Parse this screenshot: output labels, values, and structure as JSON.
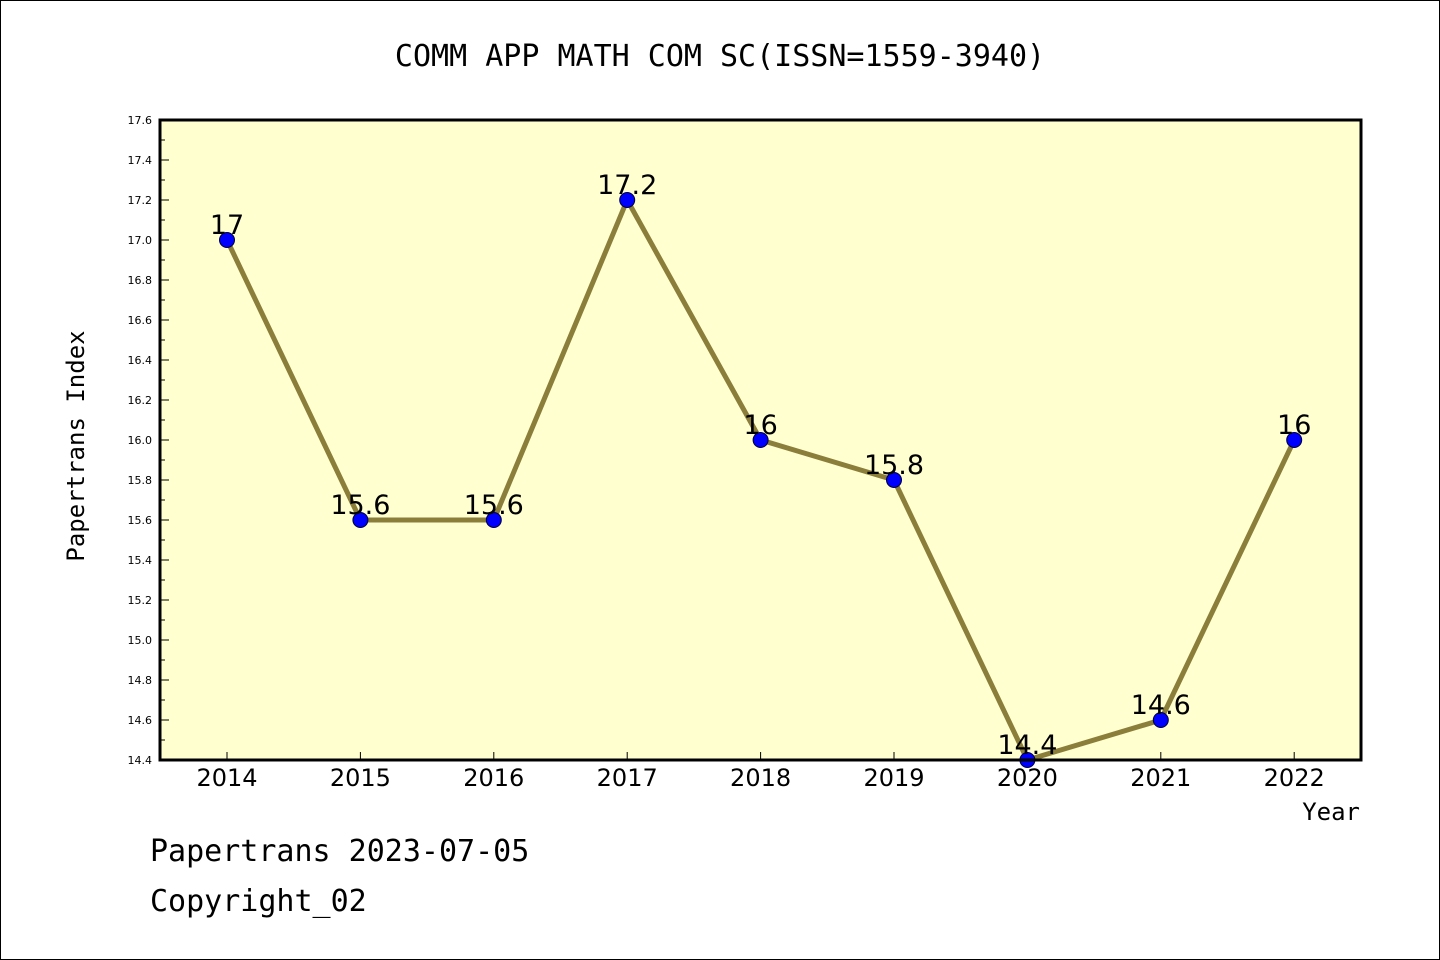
{
  "chart_data": {
    "type": "line",
    "title": "COMM APP MATH COM SC(ISSN=1559-3940)",
    "xlabel": "Year",
    "ylabel": "Papertrans Index",
    "categories": [
      "2014",
      "2015",
      "2016",
      "2017",
      "2018",
      "2019",
      "2020",
      "2021",
      "2022"
    ],
    "values": [
      17,
      15.6,
      15.6,
      17.2,
      16,
      15.8,
      14.4,
      14.6,
      16
    ],
    "data_labels": [
      "17",
      "15.6",
      "15.6",
      "17.2",
      "16",
      "15.8",
      "14.4",
      "14.6",
      "16"
    ],
    "ylim": [
      14.4,
      17.6
    ],
    "yticks": [
      "14.4",
      "14.6",
      "14.8",
      "15.0",
      "15.2",
      "15.4",
      "15.6",
      "15.8",
      "16.0",
      "16.2",
      "16.4",
      "16.6",
      "16.8",
      "17.0",
      "17.2",
      "17.4",
      "17.6"
    ],
    "grid": false,
    "colors": {
      "plot_background": "#ffffd0",
      "line": "#8b7d3a",
      "marker": "#0000ff"
    }
  },
  "footer": {
    "line1": "Papertrans 2023-07-05",
    "line2": "Copyright_02"
  }
}
